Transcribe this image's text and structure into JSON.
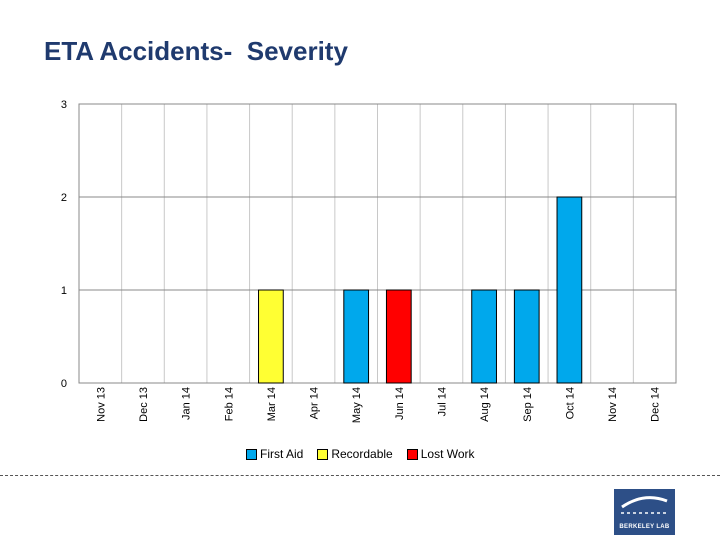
{
  "chart_data": {
    "type": "bar",
    "title": "ETA Accidents-  Severity",
    "categories": [
      "Nov 13",
      "Dec 13",
      "Jan 14",
      "Feb 14",
      "Mar 14",
      "Apr 14",
      "May 14",
      "Jun 14",
      "Jul 14",
      "Aug 14",
      "Sep 14",
      "Oct 14",
      "Nov 14",
      "Dec 14"
    ],
    "series": [
      {
        "name": "First Aid",
        "color": "#00a8ec",
        "values": [
          0,
          0,
          0,
          0,
          0,
          0,
          1,
          0,
          0,
          1,
          1,
          2,
          0,
          0
        ]
      },
      {
        "name": "Recordable",
        "color": "#ffff33",
        "values": [
          0,
          0,
          0,
          0,
          1,
          0,
          0,
          0,
          0,
          0,
          0,
          0,
          0,
          0
        ]
      },
      {
        "name": "Lost Work",
        "color": "#ff0000",
        "values": [
          0,
          0,
          0,
          0,
          0,
          0,
          0,
          1,
          0,
          0,
          0,
          0,
          0,
          0
        ]
      }
    ],
    "ylim": [
      0,
      3
    ],
    "yticks": [
      0,
      1,
      2,
      3
    ],
    "grid": true,
    "legend": "bottom",
    "xlabel": "",
    "ylabel": ""
  },
  "logo": {
    "text": "BERKELEY LAB"
  }
}
